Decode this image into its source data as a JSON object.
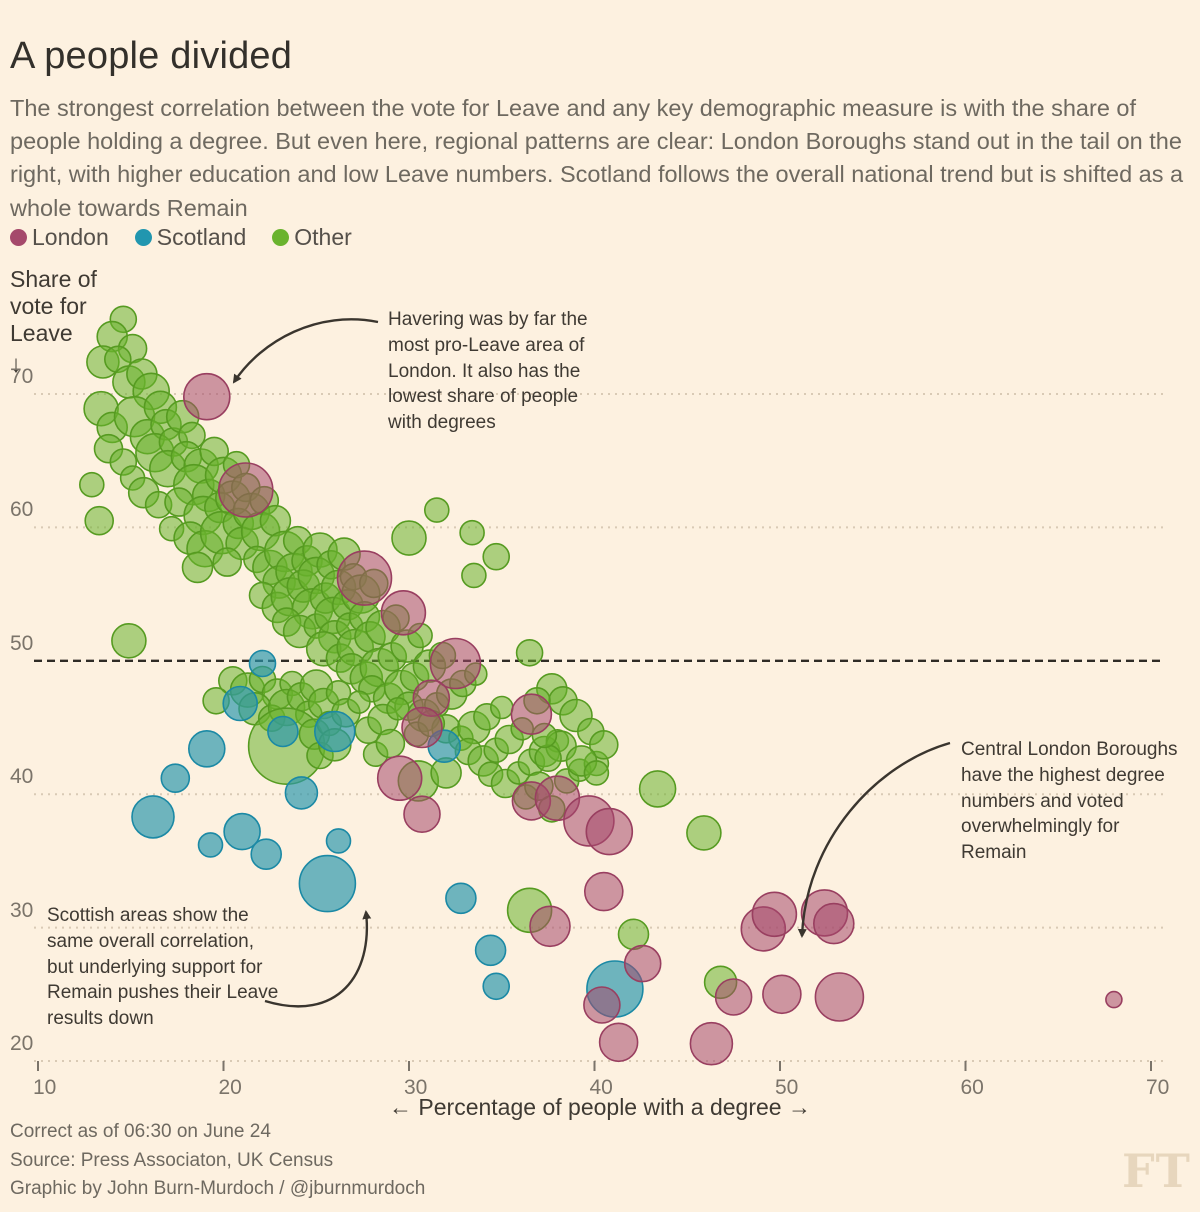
{
  "header": {
    "title": "A people divided",
    "subtitle": "The strongest correlation between the vote for Leave and any key demographic measure is with the share of people holding a degree. But even here, regional patterns are clear: London Boroughs stand out in the tail on the right, with higher education and low Leave numbers. Scotland follows the overall national trend but is shifted as a whole towards Remain"
  },
  "legend": {
    "items": [
      {
        "label": "London",
        "color": "#a5496b"
      },
      {
        "label": "Scotland",
        "color": "#2196af"
      },
      {
        "label": "Other",
        "color": "#6ab32e"
      }
    ]
  },
  "colors": {
    "background": "#fdf1e0",
    "gridline": "#d9cab5",
    "highlight_line": "#2f2b25",
    "ft_logo": "#e7d6bd"
  },
  "chart_data": {
    "type": "scatter",
    "title": "A people divided",
    "x_axis": {
      "label": "← Percentage of people with a degree →",
      "ticks": [
        10,
        20,
        30,
        40,
        50,
        60,
        70
      ],
      "range": [
        10,
        72
      ],
      "grid": false
    },
    "y_axis": {
      "title": "Share of vote for Leave",
      "arrow": "↓",
      "ticks": [
        70,
        60,
        50,
        40,
        30,
        20
      ],
      "range": [
        18,
        77
      ],
      "highlight_line": 50,
      "grid": true
    },
    "legend_position": "top-left",
    "series": [
      {
        "name": "London",
        "fill": "#a5496b",
        "fill_opacity": 0.55,
        "stroke": "#993f60",
        "points": [
          [
            19.1,
            69.8,
            23
          ],
          [
            21.2,
            62.8,
            27
          ],
          [
            27.6,
            56.2,
            27
          ],
          [
            29.7,
            53.6,
            22
          ],
          [
            32.5,
            49.8,
            25
          ],
          [
            31.2,
            47.2,
            18
          ],
          [
            30.7,
            45.0,
            20
          ],
          [
            36.6,
            46.0,
            20
          ],
          [
            29.5,
            41.2,
            22
          ],
          [
            30.7,
            38.5,
            18
          ],
          [
            36.6,
            39.5,
            19
          ],
          [
            38.0,
            39.7,
            22
          ],
          [
            39.7,
            38.0,
            25
          ],
          [
            40.8,
            37.2,
            23
          ],
          [
            40.5,
            32.7,
            19
          ],
          [
            37.6,
            30.1,
            20
          ],
          [
            42.6,
            27.3,
            18
          ],
          [
            40.4,
            24.2,
            18
          ],
          [
            41.3,
            21.4,
            19
          ],
          [
            46.3,
            21.3,
            21
          ],
          [
            47.5,
            24.8,
            18
          ],
          [
            50.1,
            25.0,
            19
          ],
          [
            53.2,
            24.8,
            24
          ],
          [
            49.1,
            29.9,
            22
          ],
          [
            49.7,
            31.0,
            22
          ],
          [
            52.4,
            31.1,
            23
          ],
          [
            52.9,
            30.3,
            20
          ],
          [
            68.0,
            24.6,
            8
          ]
        ]
      },
      {
        "name": "Scotland",
        "fill": "#2996ad",
        "fill_opacity": 0.68,
        "stroke": "#1b89a5",
        "points": [
          [
            22.1,
            49.8,
            13
          ],
          [
            20.9,
            46.8,
            17
          ],
          [
            23.2,
            44.7,
            15
          ],
          [
            26.0,
            44.7,
            20
          ],
          [
            19.1,
            43.4,
            18
          ],
          [
            17.4,
            41.2,
            14
          ],
          [
            16.2,
            38.3,
            21
          ],
          [
            21.0,
            37.2,
            18
          ],
          [
            19.3,
            36.2,
            12
          ],
          [
            22.3,
            35.5,
            15
          ],
          [
            24.2,
            40.1,
            16
          ],
          [
            25.6,
            33.3,
            28
          ],
          [
            26.2,
            36.5,
            12
          ],
          [
            31.9,
            43.6,
            16
          ],
          [
            32.8,
            32.2,
            15
          ],
          [
            34.4,
            28.3,
            15
          ],
          [
            34.7,
            25.6,
            13
          ],
          [
            41.1,
            25.4,
            28
          ]
        ]
      },
      {
        "name": "Other",
        "fill": "#6ab32e",
        "fill_opacity": 0.55,
        "stroke": "#569b21",
        "points": [
          [
            14.6,
            75.6,
            13
          ],
          [
            14.0,
            74.3,
            15
          ],
          [
            15.1,
            73.4,
            14
          ],
          [
            13.5,
            72.4,
            16
          ],
          [
            14.3,
            72.6,
            13
          ],
          [
            14.9,
            70.9,
            16
          ],
          [
            13.4,
            68.9,
            17
          ],
          [
            15.6,
            71.5,
            15
          ],
          [
            16.1,
            70.2,
            18
          ],
          [
            14.0,
            67.5,
            15
          ],
          [
            15.2,
            68.3,
            20
          ],
          [
            16.6,
            69.0,
            16
          ],
          [
            13.8,
            65.9,
            14
          ],
          [
            15.9,
            66.8,
            17
          ],
          [
            16.9,
            67.7,
            15
          ],
          [
            14.6,
            64.9,
            13
          ],
          [
            16.3,
            65.6,
            19
          ],
          [
            17.3,
            66.4,
            14
          ],
          [
            15.1,
            63.7,
            12
          ],
          [
            17.8,
            68.3,
            16
          ],
          [
            18.3,
            66.9,
            13
          ],
          [
            17.0,
            64.4,
            18
          ],
          [
            15.7,
            62.6,
            15
          ],
          [
            16.5,
            61.7,
            13
          ],
          [
            18.0,
            65.3,
            15
          ],
          [
            18.8,
            64.6,
            17
          ],
          [
            19.5,
            65.7,
            14
          ],
          [
            18.4,
            63.2,
            20
          ],
          [
            19.2,
            62.4,
            16
          ],
          [
            20.0,
            63.9,
            18
          ],
          [
            20.7,
            64.7,
            13
          ],
          [
            17.6,
            61.9,
            14
          ],
          [
            18.9,
            60.9,
            19
          ],
          [
            19.8,
            61.5,
            15
          ],
          [
            20.5,
            62.2,
            17
          ],
          [
            21.2,
            63.0,
            14
          ],
          [
            17.2,
            59.9,
            12
          ],
          [
            18.2,
            59.2,
            16
          ],
          [
            19.0,
            58.4,
            18
          ],
          [
            19.9,
            59.6,
            21
          ],
          [
            20.8,
            60.3,
            15
          ],
          [
            21.5,
            61.2,
            18
          ],
          [
            22.2,
            62.0,
            14
          ],
          [
            21.0,
            58.8,
            16
          ],
          [
            22.0,
            59.7,
            19
          ],
          [
            22.8,
            60.5,
            15
          ],
          [
            21.8,
            57.6,
            13
          ],
          [
            20.2,
            57.4,
            14
          ],
          [
            18.6,
            57.0,
            15
          ],
          [
            22.5,
            57.0,
            17
          ],
          [
            23.3,
            58.2,
            20
          ],
          [
            24.0,
            59.0,
            14
          ],
          [
            23.0,
            55.9,
            16
          ],
          [
            23.8,
            56.7,
            18
          ],
          [
            24.5,
            57.5,
            15
          ],
          [
            25.2,
            58.3,
            17
          ],
          [
            22.1,
            54.9,
            13
          ],
          [
            22.9,
            54.0,
            15
          ],
          [
            23.6,
            54.8,
            19
          ],
          [
            24.3,
            55.6,
            16
          ],
          [
            25.0,
            56.4,
            18
          ],
          [
            25.8,
            57.2,
            14
          ],
          [
            26.5,
            58.0,
            16
          ],
          [
            24.8,
            53.9,
            20
          ],
          [
            25.5,
            54.7,
            15
          ],
          [
            26.2,
            55.5,
            17
          ],
          [
            27.0,
            56.3,
            13
          ],
          [
            23.4,
            52.9,
            14
          ],
          [
            24.1,
            52.2,
            16
          ],
          [
            25.0,
            52.6,
            12
          ],
          [
            25.9,
            53.4,
            18
          ],
          [
            26.7,
            54.2,
            15
          ],
          [
            27.4,
            55.0,
            19
          ],
          [
            28.1,
            55.8,
            14
          ],
          [
            26.0,
            51.8,
            16
          ],
          [
            26.8,
            52.6,
            13
          ],
          [
            27.6,
            53.3,
            15
          ],
          [
            25.4,
            50.9,
            17
          ],
          [
            26.3,
            50.2,
            14
          ],
          [
            27.1,
            51.0,
            18
          ],
          [
            27.9,
            51.8,
            15
          ],
          [
            28.6,
            52.5,
            17
          ],
          [
            29.3,
            53.2,
            13
          ],
          [
            26.9,
            49.4,
            15
          ],
          [
            27.7,
            48.7,
            16
          ],
          [
            28.4,
            49.5,
            19
          ],
          [
            29.1,
            50.3,
            14
          ],
          [
            29.9,
            51.1,
            16
          ],
          [
            30.6,
            51.9,
            12
          ],
          [
            28.0,
            47.9,
            13
          ],
          [
            28.9,
            47.2,
            15
          ],
          [
            29.6,
            48.0,
            17
          ],
          [
            30.3,
            48.8,
            14
          ],
          [
            31.1,
            49.6,
            16
          ],
          [
            31.8,
            50.4,
            13
          ],
          [
            30.0,
            46.6,
            14
          ],
          [
            30.8,
            45.9,
            16
          ],
          [
            31.5,
            46.7,
            12
          ],
          [
            32.3,
            47.5,
            15
          ],
          [
            32.9,
            48.3,
            13
          ],
          [
            33.6,
            49.0,
            11
          ],
          [
            32.0,
            44.9,
            14
          ],
          [
            32.8,
            44.2,
            12
          ],
          [
            33.5,
            45.0,
            16
          ],
          [
            34.2,
            45.8,
            13
          ],
          [
            35.0,
            46.5,
            11
          ],
          [
            33.2,
            43.2,
            13
          ],
          [
            34.0,
            42.5,
            15
          ],
          [
            34.7,
            43.3,
            12
          ],
          [
            35.4,
            44.1,
            14
          ],
          [
            36.1,
            44.9,
            11
          ],
          [
            34.4,
            41.5,
            12
          ],
          [
            35.2,
            40.8,
            14
          ],
          [
            35.9,
            41.6,
            11
          ],
          [
            36.6,
            42.4,
            13
          ],
          [
            37.3,
            43.2,
            15
          ],
          [
            38.0,
            44.0,
            11
          ],
          [
            36.3,
            39.8,
            12
          ],
          [
            37.0,
            40.6,
            14
          ],
          [
            38.5,
            41.0,
            12
          ],
          [
            39.2,
            41.8,
            11
          ],
          [
            37.7,
            38.9,
            13
          ],
          [
            40.1,
            42.3,
            12
          ],
          [
            20.5,
            48.5,
            14
          ],
          [
            21.3,
            47.8,
            17
          ],
          [
            22.1,
            48.6,
            13
          ],
          [
            22.9,
            47.5,
            15
          ],
          [
            23.7,
            48.3,
            12
          ],
          [
            21.7,
            46.4,
            16
          ],
          [
            22.6,
            45.7,
            13
          ],
          [
            23.4,
            46.5,
            18
          ],
          [
            24.2,
            47.3,
            14
          ],
          [
            25.0,
            48.1,
            16
          ],
          [
            24.6,
            46.0,
            13
          ],
          [
            25.4,
            46.8,
            15
          ],
          [
            26.2,
            47.6,
            12
          ],
          [
            23.4,
            43.6,
            38
          ],
          [
            24.9,
            44.5,
            15
          ],
          [
            25.7,
            45.3,
            12
          ],
          [
            26.6,
            46.1,
            14
          ],
          [
            27.3,
            46.9,
            11
          ],
          [
            25.2,
            42.9,
            13
          ],
          [
            26.0,
            43.7,
            16
          ],
          [
            27.8,
            44.8,
            13
          ],
          [
            28.6,
            45.6,
            15
          ],
          [
            29.4,
            46.4,
            11
          ],
          [
            28.2,
            43.0,
            12
          ],
          [
            29.0,
            43.8,
            14
          ],
          [
            30.4,
            44.5,
            12
          ],
          [
            31.2,
            45.3,
            13
          ],
          [
            19.6,
            47.0,
            13
          ],
          [
            37.7,
            47.9,
            15
          ],
          [
            38.3,
            47.0,
            14
          ],
          [
            39.0,
            45.9,
            16
          ],
          [
            39.8,
            44.7,
            13
          ],
          [
            40.5,
            43.7,
            14
          ],
          [
            38.2,
            43.6,
            15
          ],
          [
            37.5,
            42.7,
            13
          ],
          [
            39.3,
            42.5,
            15
          ],
          [
            40.1,
            41.6,
            12
          ],
          [
            37.3,
            44.4,
            12
          ],
          [
            36.9,
            47.0,
            13
          ],
          [
            14.9,
            51.5,
            17
          ],
          [
            36.5,
            50.6,
            13
          ],
          [
            33.5,
            56.4,
            12
          ],
          [
            30.0,
            59.2,
            17
          ],
          [
            31.5,
            61.3,
            12
          ],
          [
            36.5,
            31.3,
            22
          ],
          [
            42.1,
            29.5,
            15
          ],
          [
            43.4,
            40.4,
            18
          ],
          [
            45.9,
            37.1,
            17
          ],
          [
            46.8,
            25.9,
            16
          ],
          [
            30.5,
            41.0,
            20
          ],
          [
            32.0,
            41.6,
            15
          ],
          [
            13.3,
            60.5,
            14
          ],
          [
            12.9,
            63.2,
            12
          ],
          [
            33.4,
            59.6,
            12
          ],
          [
            34.7,
            57.8,
            13
          ]
        ]
      }
    ],
    "annotations": [
      {
        "id": "havering",
        "text": "Havering was by far the most pro-Leave area of London. It also has the lowest share of people with degrees",
        "points_to": {
          "x": 19.1,
          "y": 69.8
        }
      },
      {
        "id": "central-london",
        "text": "Central London Boroughs have the highest degree numbers and voted overwhelmingly for Remain",
        "points_to": {
          "x": 51,
          "y": 28.5
        }
      },
      {
        "id": "scottish",
        "text": "Scottish areas show the same overall correlation, but underlying support for Remain pushes their Leave results down",
        "points_to": {
          "x": 27.5,
          "y": 31.7
        }
      }
    ]
  },
  "footer": {
    "line1": "Correct as of 06:30 on June 24",
    "line2": "Source: Press Associaton, UK Census",
    "line3": "Graphic by John Burn-Murdoch / @jburnmurdoch",
    "logo": "FT"
  }
}
